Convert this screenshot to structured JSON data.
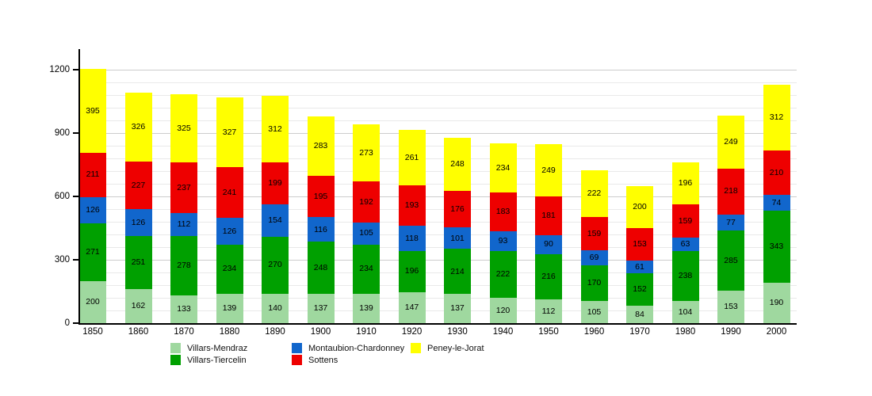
{
  "chart_data": {
    "type": "bar",
    "stacked": true,
    "title": "",
    "xlabel": "",
    "ylabel": "",
    "categories": [
      "1850",
      "1860",
      "1870",
      "1880",
      "1890",
      "1900",
      "1910",
      "1920",
      "1930",
      "1940",
      "1950",
      "1960",
      "1970",
      "1980",
      "1990",
      "2000"
    ],
    "series": [
      {
        "name": "Villars-Mendraz",
        "color": "#9fd89f",
        "values": [
          200,
          162,
          133,
          139,
          140,
          137,
          139,
          147,
          137,
          120,
          112,
          105,
          84,
          104,
          153,
          190
        ]
      },
      {
        "name": "Villars-Tiercelin",
        "color": "#00a000",
        "values": [
          271,
          251,
          278,
          234,
          270,
          248,
          234,
          196,
          214,
          222,
          216,
          170,
          152,
          238,
          285,
          343
        ]
      },
      {
        "name": "Montaubion-Chardonney",
        "color": "#1166cc",
        "values": [
          126,
          126,
          112,
          126,
          154,
          116,
          105,
          118,
          101,
          93,
          90,
          69,
          61,
          63,
          77,
          74
        ]
      },
      {
        "name": "Sottens",
        "color": "#ee0000",
        "values": [
          211,
          227,
          237,
          241,
          199,
          195,
          192,
          193,
          176,
          183,
          181,
          159,
          153,
          159,
          218,
          210
        ]
      },
      {
        "name": "Peney-le-Jorat",
        "color": "#ffff00",
        "values": [
          395,
          326,
          325,
          327,
          312,
          283,
          273,
          261,
          248,
          234,
          249,
          222,
          200,
          196,
          249,
          312
        ]
      }
    ],
    "ylim": [
      0,
      1200
    ],
    "yticks": [
      0,
      300,
      600,
      900,
      1200
    ],
    "minor_grid_step": 60,
    "grid": true,
    "legend_position": "bottom",
    "bar_value_labels": true,
    "axis_color": "#000000",
    "background_color": "#ffffff"
  }
}
